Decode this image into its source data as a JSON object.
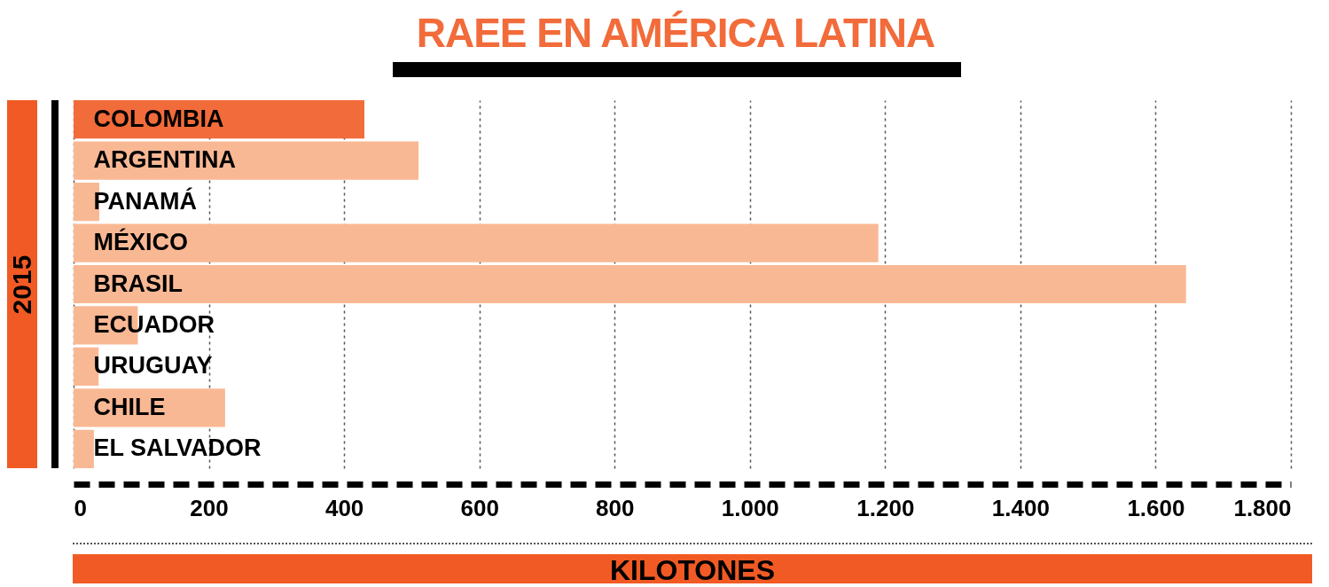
{
  "chart_data": {
    "type": "bar",
    "orientation": "horizontal",
    "title": "RAEE EN AMÉRICA LATINA",
    "xlabel": "KILOTONES",
    "ylabel": "2015",
    "categories": [
      "COLOMBIA",
      "ARGENTINA",
      "PANAMÁ",
      "MÉXICO",
      "BRASIL",
      "ECUADOR",
      "URUGUAY",
      "CHILE",
      "EL SALVADOR"
    ],
    "values": [
      430,
      510,
      38,
      1190,
      1645,
      95,
      37,
      224,
      30
    ],
    "colors": [
      "#f26b3a",
      "#f9b894",
      "#f9b894",
      "#f9b894",
      "#f9b894",
      "#f9b894",
      "#f9b894",
      "#f9b894",
      "#f9b894"
    ],
    "xlim": [
      0,
      1800
    ],
    "xticks": [
      0,
      200,
      400,
      600,
      800,
      {
        "value": 1000,
        "label": "1.000"
      },
      {
        "value": 1200,
        "label": "1.200"
      },
      {
        "value": 1400,
        "label": "1.400"
      },
      {
        "value": 1600,
        "label": "1.600"
      },
      {
        "value": 1800,
        "label": "1.800"
      }
    ],
    "grid": "x"
  }
}
